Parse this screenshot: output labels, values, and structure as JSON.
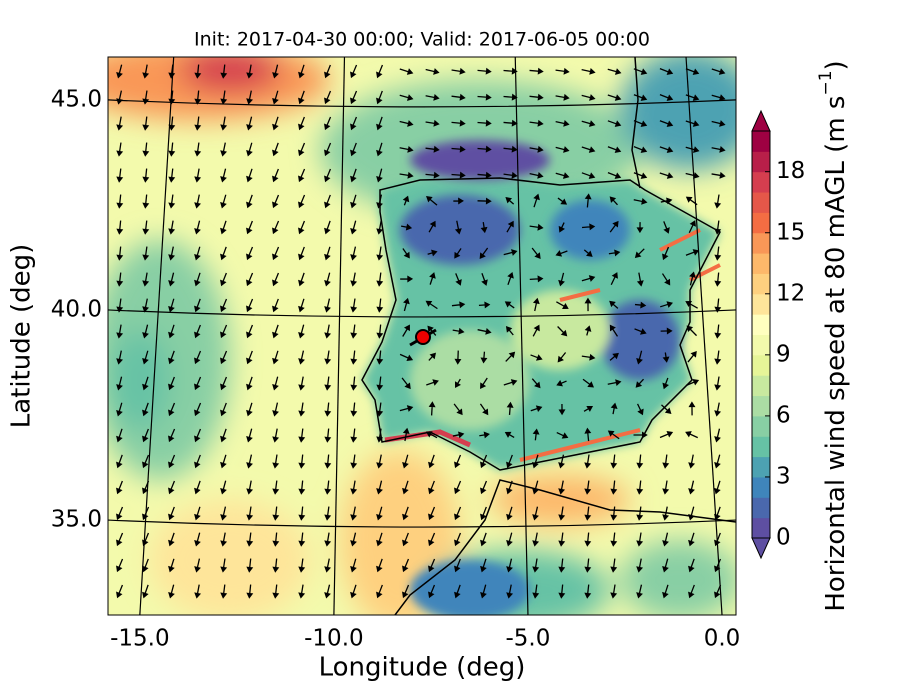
{
  "chart_data": {
    "type": "contour_map",
    "title": "Init: 2017-04-30 00:00; Valid: 2017-06-05 00:00",
    "xlabel": "Longitude (deg)",
    "ylabel": "Latitude (deg)",
    "xlim": [
      -15.82,
      0.36
    ],
    "ylim": [
      32.74,
      46.02
    ],
    "xticks": [
      {
        "value": -15,
        "label": "-15.0"
      },
      {
        "value": -10,
        "label": "-10.0"
      },
      {
        "value": -5,
        "label": "-5.0"
      },
      {
        "value": 0,
        "label": "0.0"
      }
    ],
    "yticks": [
      {
        "value": 35,
        "label": "35.0"
      },
      {
        "value": 40,
        "label": "40.0"
      },
      {
        "value": 45,
        "label": "45.0"
      }
    ],
    "colorbar": {
      "label": "Horizontal wind speed at 80 mAGL (m s",
      "label_exponent": "−1",
      "label_end": ")",
      "lim": [
        0,
        20
      ],
      "ticks": [
        0,
        3,
        6,
        9,
        12,
        15,
        18
      ],
      "extend": "both",
      "colors": [
        "#5e4fa2",
        "#4a68ad",
        "#3f85bb",
        "#4da2b2",
        "#66c2a5",
        "#88cfa4",
        "#abdda4",
        "#c8e99f",
        "#e6f598",
        "#f3faac",
        "#ffffbf",
        "#fee59a",
        "#fed07f",
        "#fdb86a",
        "#f99757",
        "#f46d43",
        "#e55749",
        "#d53e4f",
        "#b81f49",
        "#9e0142"
      ]
    }
  }
}
